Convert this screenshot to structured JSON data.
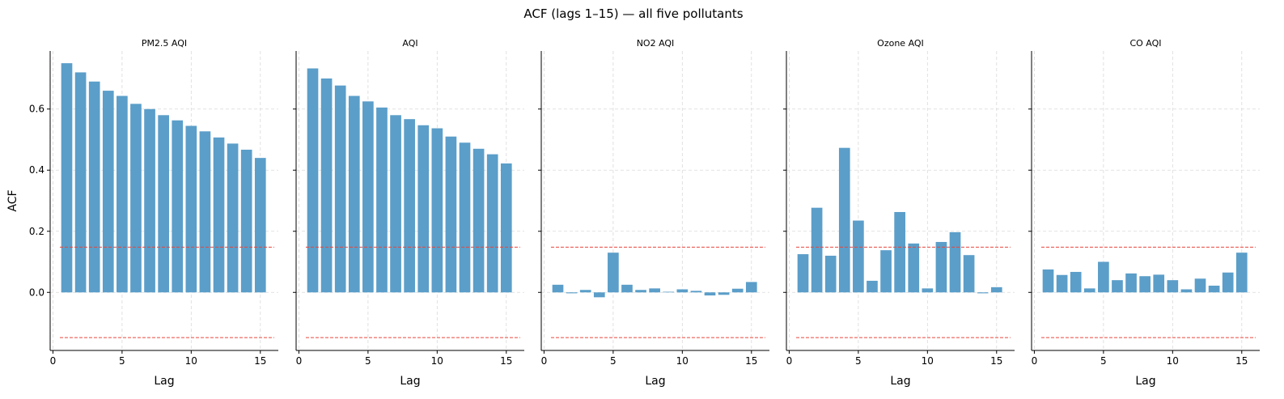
{
  "figure": {
    "title": "ACF (lags 1–15) — all five pollutants"
  },
  "chart_data": {
    "type": "bar",
    "shared_y": true,
    "xlabel": "Lag",
    "ylabel": "ACF",
    "xlim": [
      -0.2,
      16.3
    ],
    "ylim": [
      -0.19,
      0.79
    ],
    "xticks": [
      "0",
      "5",
      "10",
      "15"
    ],
    "yticks": [
      "0.0",
      "0.2",
      "0.4",
      "0.6"
    ],
    "grid": true,
    "bar_color": "#5b9ec9",
    "ci_color": "#e8463c",
    "confidence_band": [
      -0.148,
      0.148
    ],
    "lags": [
      1,
      2,
      3,
      4,
      5,
      6,
      7,
      8,
      9,
      10,
      11,
      12,
      13,
      14,
      15
    ],
    "panels": [
      {
        "title": "PM2.5 AQI",
        "values": [
          0.75,
          0.72,
          0.69,
          0.66,
          0.643,
          0.617,
          0.6,
          0.58,
          0.563,
          0.545,
          0.527,
          0.507,
          0.487,
          0.467,
          0.44
        ]
      },
      {
        "title": "AQI",
        "values": [
          0.733,
          0.7,
          0.677,
          0.643,
          0.625,
          0.605,
          0.58,
          0.567,
          0.547,
          0.537,
          0.51,
          0.49,
          0.47,
          0.452,
          0.422
        ]
      },
      {
        "title": "NO2 AQI",
        "values": [
          0.025,
          -0.003,
          0.008,
          -0.016,
          0.13,
          0.025,
          0.008,
          0.013,
          0.002,
          0.01,
          0.005,
          -0.01,
          -0.008,
          0.012,
          0.034
        ]
      },
      {
        "title": "Ozone AQI",
        "values": [
          0.125,
          0.277,
          0.12,
          0.473,
          0.235,
          0.038,
          0.138,
          0.263,
          0.16,
          0.013,
          0.165,
          0.197,
          0.122,
          -0.003,
          0.017
        ]
      },
      {
        "title": "CO AQI",
        "values": [
          0.075,
          0.057,
          0.067,
          0.013,
          0.1,
          0.04,
          0.062,
          0.053,
          0.058,
          0.04,
          0.01,
          0.045,
          0.022,
          0.065,
          0.13
        ]
      }
    ]
  }
}
